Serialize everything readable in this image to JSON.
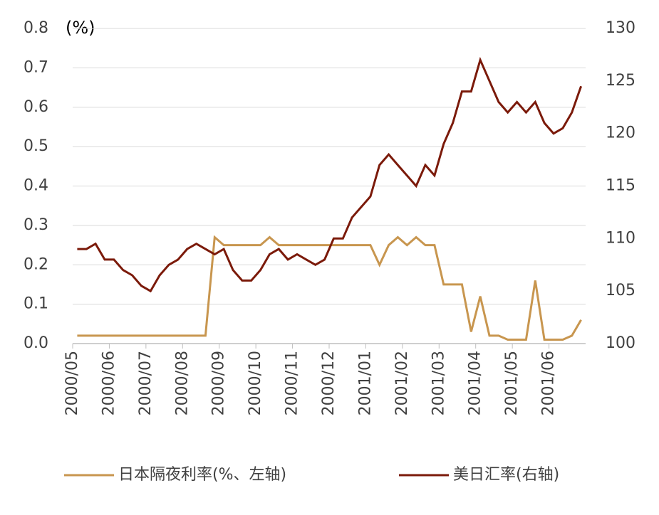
{
  "chart_data": {
    "type": "line",
    "y_label": "(%)",
    "categories": [
      "2000/05",
      null,
      null,
      null,
      "2000/06",
      null,
      null,
      null,
      "2000/07",
      null,
      null,
      null,
      "2000/08",
      null,
      null,
      null,
      "2000/09",
      null,
      null,
      null,
      "2000/10",
      null,
      null,
      null,
      "2000/11",
      null,
      null,
      null,
      "2000/12",
      null,
      null,
      null,
      "2001/01",
      null,
      null,
      null,
      "2001/02",
      null,
      null,
      null,
      "2001/03",
      null,
      null,
      null,
      "2001/04",
      null,
      null,
      null,
      "2001/05",
      null,
      null,
      null,
      "2001/06",
      null,
      null,
      null
    ],
    "series": [
      {
        "name": "日本隔夜利率(%、左轴)",
        "color": "#c8964f",
        "values": [
          0.02,
          0.02,
          0.02,
          0.02,
          0.02,
          0.02,
          0.02,
          0.02,
          0.02,
          0.02,
          0.02,
          0.02,
          0.02,
          0.02,
          0.02,
          0.27,
          0.25,
          0.25,
          0.25,
          0.25,
          0.25,
          0.27,
          0.25,
          0.25,
          0.25,
          0.25,
          0.25,
          0.25,
          0.25,
          0.25,
          0.25,
          0.25,
          0.25,
          0.2,
          0.25,
          0.27,
          0.25,
          0.27,
          0.25,
          0.25,
          0.15,
          0.15,
          0.15,
          0.03,
          0.12,
          0.02,
          0.02,
          0.01,
          0.01,
          0.01,
          0.16,
          0.01,
          0.01,
          0.01,
          0.02,
          0.06
        ]
      },
      {
        "name": "美日汇率(右轴)",
        "color": "#7b1a0a",
        "axis": "y2",
        "values": [
          109,
          109,
          109.5,
          108,
          108,
          107,
          106.5,
          105.5,
          105,
          106.5,
          107.5,
          108,
          109,
          109.5,
          109,
          108.5,
          109,
          107,
          106,
          106,
          107,
          108.5,
          109,
          108,
          108.5,
          108,
          107.5,
          108,
          110,
          110,
          112,
          113,
          114,
          117,
          118,
          117,
          116,
          115,
          117,
          116,
          119,
          121,
          124,
          124,
          127,
          125,
          123,
          122,
          123,
          122,
          123,
          121,
          120,
          120.5,
          122,
          124.5
        ]
      }
    ],
    "ylim": [
      0,
      0.8
    ],
    "yticks": [
      {
        "value": 0,
        "label": "0.0"
      },
      0.1,
      0.2,
      0.3,
      0.4,
      0.5,
      0.6,
      0.7,
      0.8
    ],
    "y2lim": [
      100,
      130
    ],
    "y2ticks": [
      100,
      105,
      110,
      115,
      120,
      125,
      130
    ],
    "grid": true
  }
}
